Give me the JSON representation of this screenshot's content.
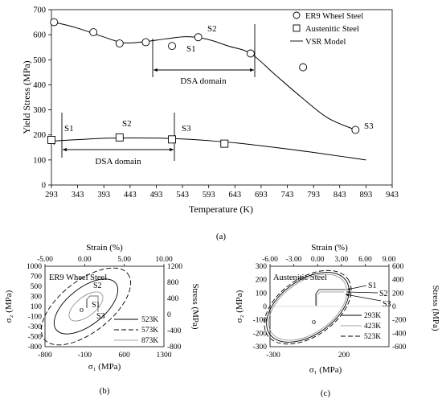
{
  "figure": {
    "caption_a": "(a)",
    "caption_b": "(b)",
    "caption_c": "(c)"
  },
  "chart_data": [
    {
      "panel": "a",
      "type": "line",
      "xlabel": "Temperature (K)",
      "ylabel": "Yield Stress (MPa)",
      "xlim": [
        293,
        943
      ],
      "ylim": [
        0,
        700
      ],
      "x_ticks": [
        293,
        343,
        393,
        443,
        493,
        543,
        593,
        643,
        693,
        743,
        793,
        843,
        893,
        943
      ],
      "y_ticks": [
        0,
        100,
        200,
        300,
        400,
        500,
        600,
        700
      ],
      "legend_position": "top-right",
      "legend": [
        {
          "label": "ER9 Wheel Steel",
          "marker": "circle"
        },
        {
          "label": "Austenitic Steel",
          "marker": "square"
        },
        {
          "label": "VSR Model",
          "marker": "line"
        }
      ],
      "series": [
        {
          "name": "ER9 Wheel Steel",
          "marker": "circle",
          "x": [
            298,
            373,
            423,
            473,
            523,
            573,
            673,
            773,
            873
          ],
          "y": [
            650,
            610,
            565,
            570,
            555,
            590,
            525,
            470,
            220
          ]
        },
        {
          "name": "Austenitic Steel",
          "marker": "square",
          "x": [
            293,
            423,
            523,
            623
          ],
          "y": [
            180,
            190,
            182,
            165
          ]
        },
        {
          "name": "VSR Model",
          "style": "line",
          "x": [
            298,
            340,
            390,
            430,
            470,
            510,
            550,
            590,
            630,
            673,
            720,
            770,
            820,
            873
          ],
          "y": [
            650,
            628,
            593,
            568,
            572,
            583,
            592,
            582,
            555,
            525,
            440,
            350,
            268,
            220
          ]
        },
        {
          "name": "VSR Model",
          "style": "line",
          "x": [
            293,
            350,
            400,
            450,
            500,
            550,
            600,
            650,
            700,
            750,
            800,
            850,
            893
          ],
          "y": [
            175,
            182,
            187,
            188,
            187,
            183,
            176,
            167,
            155,
            142,
            128,
            113,
            100
          ]
        }
      ],
      "annotations": [
        {
          "text": "S1",
          "x": 303,
          "y": 555
        },
        {
          "text": "S2",
          "x": 573,
          "y": 618
        },
        {
          "text": "S3",
          "x": 893,
          "y": 218
        },
        {
          "text": "S1",
          "x": 298,
          "y": 198
        },
        {
          "text": "S2",
          "x": 418,
          "y": 213
        },
        {
          "text": "S3",
          "x": 528,
          "y": 198
        },
        {
          "text": "DSA domain",
          "x": 573,
          "y": 415
        },
        {
          "text": "DSA domain",
          "x": 388,
          "y": 88
        }
      ],
      "domains": [
        {
          "label": "DSA domain",
          "from": 473,
          "to": 673,
          "at_y": 440
        },
        {
          "label": "DSA domain",
          "from": 298,
          "to": 513,
          "at_y": 130
        }
      ]
    },
    {
      "panel": "b",
      "type": "line",
      "inset_label": "ER9 Wheel Steel",
      "xlabel": "σ₁ (MPa)",
      "ylabel": "σ₂ (MPa)",
      "top_label": "Strain (%)",
      "right_label": "Stress (MPa)",
      "xlim": [
        -800,
        1300
      ],
      "ylim": [
        -800,
        1000
      ],
      "x_ticks": [
        "-800",
        "-100",
        "600",
        "1300"
      ],
      "y_ticks": [
        "-800",
        "-500",
        "-300",
        "-100",
        "100",
        "300",
        "500",
        "700",
        "1000"
      ],
      "top_ticks": [
        "-5.00",
        "0.00",
        "5.00",
        "10.00"
      ],
      "right_ticks": [
        "-800",
        "-400",
        "0",
        "400",
        "800",
        "1200"
      ],
      "origin_label": "o",
      "legend": [
        "523K",
        "573K",
        "873K"
      ],
      "point_labels": [
        "S1",
        "S2",
        "S3"
      ]
    },
    {
      "panel": "c",
      "type": "line",
      "inset_label": "Austenitic Steel",
      "xlabel": "σ₁ (MPa)",
      "ylabel": "σ₂ (MPa)",
      "top_label": "Strain (%)",
      "right_label": "Stress (MPa)",
      "xlim": [
        -300,
        200
      ],
      "ylim": [
        -300,
        300
      ],
      "x_ticks": [
        "-300",
        "200"
      ],
      "y_ticks": [
        "-300",
        "-200",
        "-100",
        "0",
        "100",
        "200",
        "300"
      ],
      "top_ticks": [
        "-6.00",
        "-3.00",
        "0.00",
        "3.00",
        "6.00",
        "9.00"
      ],
      "right_ticks": [
        "-600",
        "-400",
        "-200",
        "0",
        "200",
        "400",
        "600"
      ],
      "origin_label": "o",
      "legend": [
        "293K",
        "423K",
        "523K"
      ],
      "point_labels": [
        "S1",
        "S2",
        "S3"
      ]
    }
  ]
}
